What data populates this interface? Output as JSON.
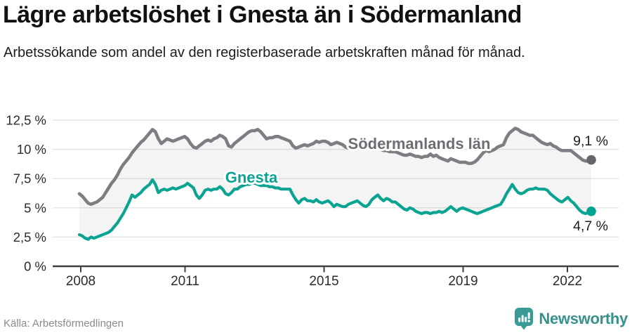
{
  "header": {
    "title": "Lägre arbetslöshet i Gnesta än i Södermanland",
    "subtitle": "Arbetssökande som andel av den registerbaserade arbetskraften månad för månad."
  },
  "chart_data": {
    "type": "line",
    "title": "Lägre arbetslöshet i Gnesta än i Södermanland",
    "subtitle": "Arbetssökande som andel av den registerbaserade arbetskraften månad för månad.",
    "interval": "monthly",
    "x_start": "2008-01",
    "x_end": "2022-08",
    "x_ticks": [
      {
        "year": 2008,
        "label": "2008"
      },
      {
        "year": 2011,
        "label": "2011"
      },
      {
        "year": 2015,
        "label": "2015"
      },
      {
        "year": 2019,
        "label": "2019"
      },
      {
        "year": 2022,
        "label": "2022"
      }
    ],
    "y_ticks": [
      {
        "value": 0,
        "label": "0 %"
      },
      {
        "value": 2.5,
        "label": "2,5 %"
      },
      {
        "value": 5,
        "label": "5 %"
      },
      {
        "value": 7.5,
        "label": "7,5 %"
      },
      {
        "value": 10,
        "label": "10 %"
      },
      {
        "value": 12.5,
        "label": "12,5 %"
      }
    ],
    "ylim": [
      0,
      13.7
    ],
    "grid": "horizontal",
    "legend": "inline-labels",
    "fill_between_series": true,
    "series": [
      {
        "name": "Södermanlands län",
        "color": "#7e7d83",
        "dot_color": "#67666c",
        "end_label": "9,1 %",
        "end_value": 9.1,
        "values": [
          6.2,
          6.0,
          5.7,
          5.4,
          5.3,
          5.4,
          5.5,
          5.7,
          5.9,
          6.3,
          6.7,
          7.1,
          7.4,
          7.8,
          8.3,
          8.7,
          9.0,
          9.3,
          9.7,
          10.0,
          10.3,
          10.6,
          10.8,
          11.1,
          11.4,
          11.7,
          11.5,
          10.9,
          10.5,
          10.7,
          10.9,
          10.8,
          10.7,
          10.8,
          10.9,
          11.0,
          11.1,
          10.9,
          10.5,
          10.2,
          10.1,
          10.3,
          10.5,
          10.7,
          10.8,
          10.7,
          10.9,
          11.0,
          11.2,
          11.1,
          10.9,
          10.3,
          10.2,
          10.5,
          10.7,
          10.9,
          11.1,
          11.3,
          11.5,
          11.6,
          11.6,
          11.7,
          11.5,
          11.2,
          10.9,
          11.0,
          11.0,
          11.1,
          11.1,
          11.0,
          10.9,
          10.8,
          10.7,
          10.3,
          10.1,
          10.2,
          10.3,
          10.4,
          10.3,
          10.4,
          10.5,
          10.7,
          10.6,
          10.7,
          10.7,
          10.6,
          10.4,
          10.5,
          10.6,
          10.5,
          10.4,
          10.2,
          10.1,
          10.3,
          10.5,
          10.6,
          10.5,
          10.4,
          10.3,
          10.2,
          10.1,
          10.2,
          10.1,
          10.0,
          9.9,
          9.9,
          9.8,
          9.8,
          9.8,
          9.7,
          9.6,
          9.5,
          9.5,
          9.6,
          9.5,
          9.4,
          9.4,
          9.3,
          9.4,
          9.4,
          9.6,
          9.4,
          9.5,
          9.3,
          9.2,
          9.1,
          9.0,
          9.2,
          9.1,
          9.0,
          8.9,
          8.9,
          8.9,
          8.8,
          8.8,
          8.9,
          9.1,
          9.4,
          9.7,
          9.9,
          9.8,
          9.9,
          10.0,
          10.2,
          10.3,
          10.4,
          11.0,
          11.4,
          11.6,
          11.8,
          11.7,
          11.5,
          11.4,
          11.3,
          11.2,
          11.2,
          11.0,
          10.8,
          10.6,
          10.5,
          10.4,
          10.5,
          10.3,
          10.2,
          10.0,
          9.9,
          9.9,
          9.9,
          9.9,
          9.7,
          9.5,
          9.3,
          9.1,
          9.0,
          9.0,
          9.1
        ]
      },
      {
        "name": "Gnesta",
        "color": "#0ba392",
        "dot_color": "#00a392",
        "end_label": "4,7 %",
        "end_value": 4.7,
        "values": [
          2.7,
          2.6,
          2.4,
          2.3,
          2.5,
          2.4,
          2.5,
          2.6,
          2.7,
          2.8,
          2.9,
          3.1,
          3.4,
          3.7,
          4.1,
          4.5,
          5.0,
          5.5,
          6.1,
          5.9,
          6.1,
          6.3,
          6.6,
          6.8,
          7.0,
          7.4,
          7.0,
          6.3,
          6.5,
          6.6,
          6.5,
          6.6,
          6.7,
          6.6,
          6.7,
          6.8,
          6.9,
          7.1,
          6.9,
          6.7,
          6.1,
          5.8,
          6.1,
          6.5,
          6.6,
          6.5,
          6.6,
          6.6,
          6.8,
          6.6,
          6.2,
          6.1,
          6.3,
          6.6,
          6.6,
          6.8,
          6.9,
          7.0,
          7.0,
          7.1,
          7.1,
          7.0,
          6.9,
          6.9,
          6.9,
          6.8,
          6.8,
          6.7,
          6.7,
          6.6,
          6.6,
          6.6,
          6.6,
          6.1,
          5.7,
          5.4,
          5.7,
          5.8,
          5.6,
          5.6,
          5.5,
          5.7,
          5.5,
          5.4,
          5.5,
          5.6,
          5.4,
          5.1,
          5.3,
          5.2,
          5.1,
          5.1,
          5.3,
          5.4,
          5.5,
          5.6,
          5.4,
          5.2,
          5.1,
          5.3,
          5.7,
          5.9,
          6.1,
          5.8,
          5.6,
          5.8,
          5.7,
          5.5,
          5.5,
          5.3,
          5.1,
          4.9,
          4.8,
          5.0,
          4.9,
          4.7,
          4.6,
          4.5,
          4.6,
          4.6,
          4.5,
          4.6,
          4.6,
          4.7,
          4.6,
          4.7,
          4.9,
          5.1,
          4.9,
          4.7,
          4.9,
          5.0,
          4.9,
          4.8,
          4.7,
          4.6,
          4.5,
          4.6,
          4.7,
          4.8,
          4.9,
          5.0,
          5.1,
          5.2,
          5.3,
          5.7,
          6.2,
          6.6,
          7.0,
          6.6,
          6.3,
          6.2,
          6.3,
          6.5,
          6.6,
          6.6,
          6.7,
          6.6,
          6.6,
          6.6,
          6.5,
          6.2,
          6.0,
          5.8,
          5.6,
          5.5,
          5.7,
          5.9,
          5.6,
          5.4,
          5.1,
          4.8,
          4.6,
          4.5,
          4.6,
          4.7
        ]
      }
    ]
  },
  "colors": {
    "fill_between": "rgba(0,0,0,0.045)",
    "gridline": "#e0e0e0",
    "axis": "#3f3f3f",
    "tick_label": "#2b2b2b",
    "value_label": "#1d1d1d",
    "brand_teal": "#3a9a95"
  },
  "footer": {
    "source": "Källa: Arbetsförmedlingen",
    "brand": "Newsworthy"
  }
}
